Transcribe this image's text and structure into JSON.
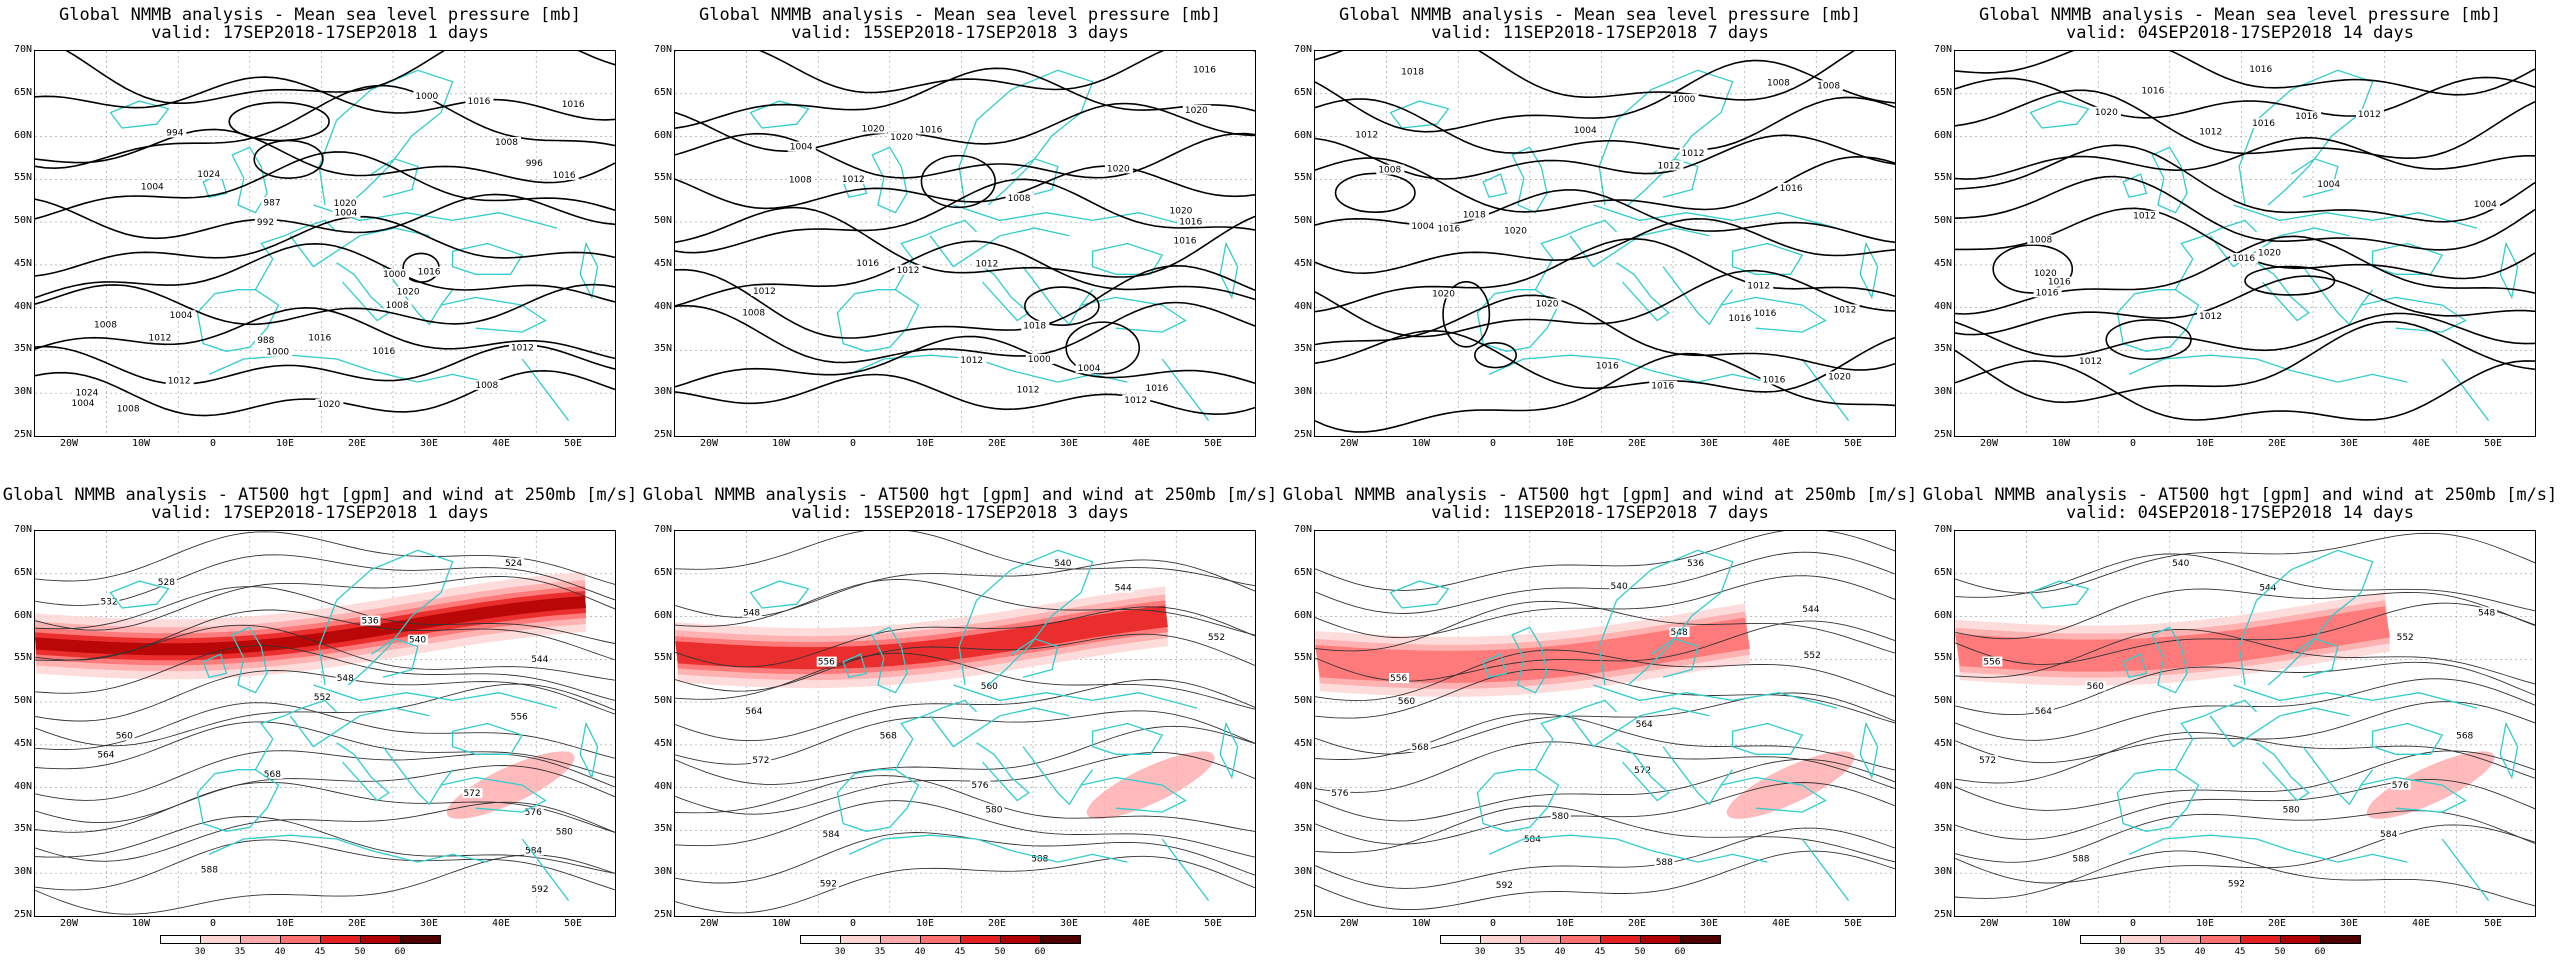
{
  "panels": [
    {
      "id": "p1",
      "title_line1": "Global NMMB analysis - Mean sea level pressure [mb]",
      "title_line2": "valid: 17SEP2018-17SEP2018  1 days",
      "type": "mslp"
    },
    {
      "id": "p2",
      "title_line1": "Global NMMB analysis - Mean sea level pressure [mb]",
      "title_line2": "valid: 15SEP2018-17SEP2018  3 days",
      "type": "mslp"
    },
    {
      "id": "p3",
      "title_line1": "Global NMMB analysis - Mean sea level pressure [mb]",
      "title_line2": "valid: 11SEP2018-17SEP2018  7 days",
      "type": "mslp"
    },
    {
      "id": "p4",
      "title_line1": "Global NMMB analysis - Mean sea level pressure [mb]",
      "title_line2": "valid: 04SEP2018-17SEP2018  14 days",
      "type": "mslp"
    },
    {
      "id": "p5",
      "title_line1": "Global NMMB analysis - AT500 hgt [gpm] and wind at 250mb [m/s]",
      "title_line2": "valid: 17SEP2018-17SEP2018  1 days",
      "type": "z500"
    },
    {
      "id": "p6",
      "title_line1": "Global NMMB analysis - AT500 hgt [gpm] and wind at 250mb [m/s]",
      "title_line2": "valid: 15SEP2018-17SEP2018  3 days",
      "type": "z500"
    },
    {
      "id": "p7",
      "title_line1": "Global NMMB analysis - AT500 hgt [gpm] and wind at 250mb [m/s]",
      "title_line2": "valid: 11SEP2018-17SEP2018  7 days",
      "type": "z500"
    },
    {
      "id": "p8",
      "title_line1": "Global NMMB analysis - AT500 hgt [gpm] and wind at 250mb [m/s]",
      "title_line2": "valid: 04SEP2018-17SEP2018  14 days",
      "type": "z500"
    }
  ],
  "axes": {
    "lat_labels": [
      "70N",
      "65N",
      "60N",
      "55N",
      "50N",
      "45N",
      "40N",
      "35N",
      "30N",
      "25N"
    ],
    "lon_labels": [
      "20W",
      "10W",
      "0",
      "10E",
      "20E",
      "30E",
      "40E",
      "50E"
    ]
  },
  "mslp_labels": {
    "p1": [
      "1000",
      "996",
      "992",
      "988",
      "987",
      "994",
      "1000",
      "1004",
      "1008",
      "1012",
      "1016",
      "1020",
      "1024",
      "1004",
      "1008",
      "1012",
      "1016",
      "1020",
      "1024",
      "1000",
      "1004",
      "1008",
      "1008",
      "1016",
      "1020",
      "1016",
      "1012",
      "1008",
      "1004",
      "1016",
      "1016"
    ],
    "p2": [
      "1000",
      "1004",
      "1004",
      "1008",
      "1012",
      "1008",
      "1016",
      "1016",
      "1012",
      "1018",
      "1020",
      "1020",
      "1012",
      "1012",
      "1020",
      "1020",
      "1016",
      "1016",
      "1012",
      "1012",
      "1016",
      "1008",
      "1012",
      "1020",
      "1016"
    ],
    "p3": [
      "1000",
      "1004",
      "1008",
      "1012",
      "1016",
      "1004",
      "1008",
      "1012",
      "1016",
      "1020",
      "1020",
      "1018",
      "1016",
      "1016",
      "1020",
      "1016",
      "1012",
      "1016",
      "1012",
      "1008",
      "1020",
      "1018",
      "1016",
      "1012"
    ],
    "p4": [
      "1004",
      "1012",
      "1012",
      "1016",
      "1016",
      "1020",
      "1020",
      "1016",
      "1020",
      "1016",
      "1012",
      "1016",
      "1016",
      "1012",
      "1008",
      "1012",
      "1004",
      "1016"
    ]
  },
  "z500_labels": {
    "p5": [
      "524",
      "528",
      "532",
      "536",
      "540",
      "544",
      "548",
      "552",
      "556",
      "560",
      "564",
      "568",
      "572",
      "576",
      "580",
      "584",
      "588",
      "592"
    ],
    "p6": [
      "540",
      "544",
      "548",
      "552",
      "556",
      "560",
      "564",
      "568",
      "572",
      "576",
      "580",
      "584",
      "588",
      "592"
    ],
    "p7": [
      "536",
      "540",
      "544",
      "548",
      "552",
      "556",
      "560",
      "564",
      "568",
      "572",
      "576",
      "580",
      "584",
      "588",
      "592"
    ],
    "p8": [
      "540",
      "544",
      "548",
      "552",
      "556",
      "560",
      "564",
      "568",
      "572",
      "576",
      "580",
      "584",
      "588",
      "592"
    ]
  },
  "colorbar": {
    "ticks": [
      "30",
      "35",
      "40",
      "45",
      "50",
      "60"
    ],
    "colors": [
      "#ffffff",
      "#ffd6d6",
      "#ffaaaa",
      "#ff7070",
      "#e62020",
      "#b00000",
      "#500000"
    ]
  },
  "colors": {
    "coast": "#33cccc",
    "contour": "#000000",
    "grid": "#999999"
  }
}
